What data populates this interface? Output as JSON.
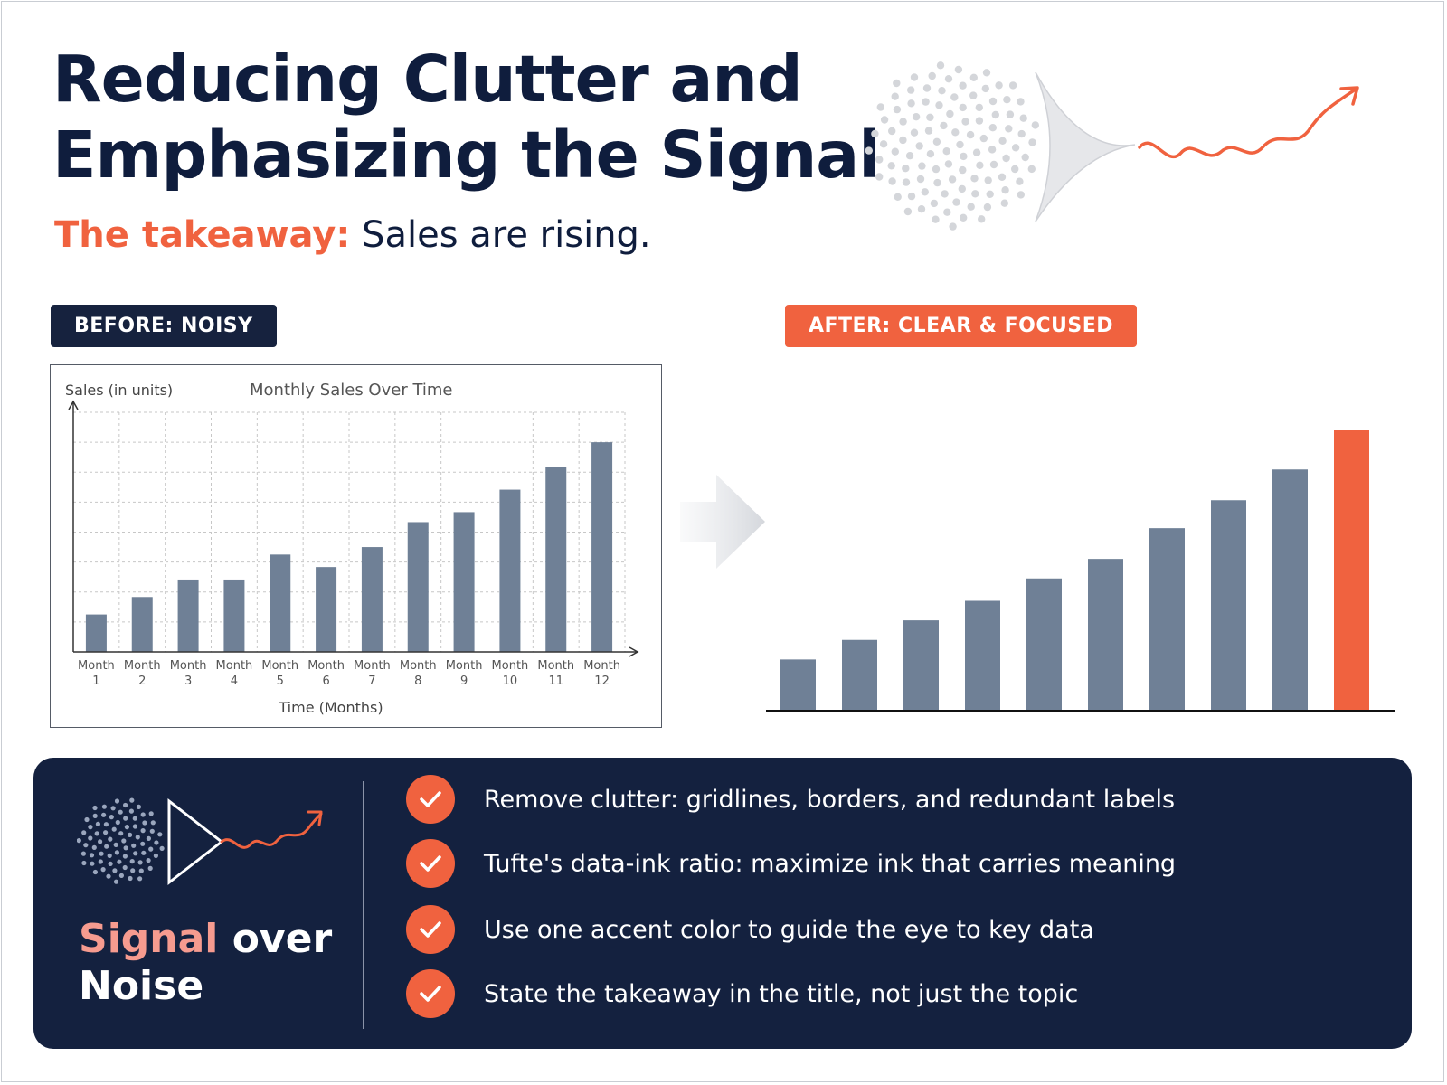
{
  "header": {
    "title_line1": "Reducing Clutter and",
    "title_line2": "Emphasizing the Signal",
    "takeaway_label": "The takeaway:",
    "takeaway_text": "Sales are rising."
  },
  "labels": {
    "before": "BEFORE: NOISY",
    "after": "AFTER: CLEAR & FOCUSED"
  },
  "colors": {
    "navy": "#14213f",
    "accent": "#f0623f",
    "bar": "#6f8096",
    "signal_text": "#f69b8f"
  },
  "icons": {
    "transition": "arrow-right-icon",
    "funnel": "noise-funnel-icon",
    "check": "check-icon"
  },
  "chart_data": [
    {
      "type": "bar",
      "title": "Monthly Sales Over Time",
      "ylabel": "Sales (in units)",
      "xlabel": "Time (Months)",
      "grid": true,
      "categories": [
        [
          "Month",
          "1"
        ],
        [
          "Month",
          "2"
        ],
        [
          "Month",
          "3"
        ],
        [
          "Month",
          "4"
        ],
        [
          "Month",
          "5"
        ],
        [
          "Month",
          "6"
        ],
        [
          "Month",
          "7"
        ],
        [
          "Month",
          "8"
        ],
        [
          "Month",
          "9"
        ],
        [
          "Month",
          "10"
        ],
        [
          "Month",
          "11"
        ],
        [
          "Month",
          "12"
        ]
      ],
      "values": [
        15,
        22,
        29,
        29,
        39,
        34,
        42,
        52,
        56,
        65,
        74,
        84
      ],
      "ylim": [
        0,
        96
      ]
    },
    {
      "type": "bar",
      "grid": false,
      "values": [
        18,
        25,
        32,
        39,
        47,
        54,
        65,
        75,
        86,
        100
      ],
      "ylim": [
        0,
        100
      ],
      "highlight_index": 9
    }
  ],
  "panel": {
    "heading_accent": "Signal",
    "heading_rest": "over",
    "heading_line2": "Noise",
    "bullets": [
      "Remove clutter: gridlines, borders, and redundant labels",
      "Tufte's data-ink ratio: maximize ink that carries meaning",
      "Use one accent color to guide the eye to key data",
      "State the takeaway in the title, not just the topic"
    ]
  }
}
